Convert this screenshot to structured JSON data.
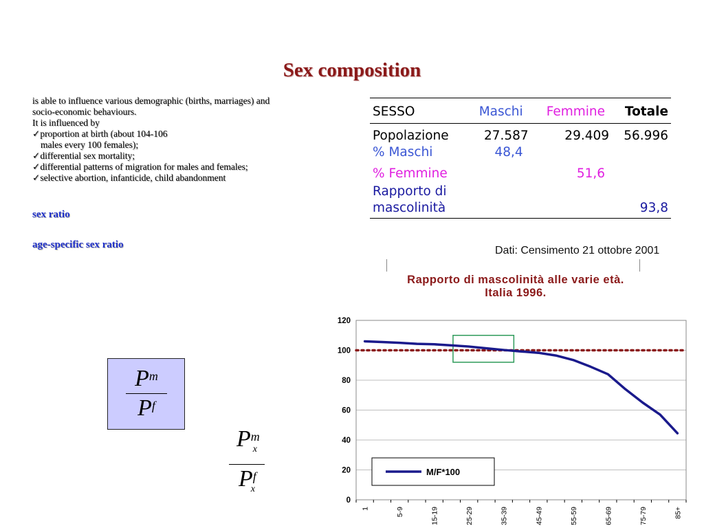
{
  "slide": {
    "title": "Sex composition",
    "intro_line1": "is able to influence various demographic (births, marriages) and",
    "intro_line2": "socio-economic behaviours.",
    "intro_line3": "It is influenced by",
    "bullets": [
      "proportion at birth (about 104-106",
      "males every 100 females);",
      "differential sex mortality;",
      "differential patterns of migration for males and females;",
      "selective abortion, infanticide, child abandonment"
    ],
    "check_mark": "✓",
    "link_sex_ratio": "sex ratio",
    "link_age_specific": "age-specific sex ratio"
  },
  "formulas": {
    "simple": {
      "num": "P",
      "num_sup": "m",
      "den": "P",
      "den_sup": "f"
    },
    "age_specific": {
      "num": "P",
      "num_sup": "m",
      "num_sub": "x",
      "den": "P",
      "den_sup": "f",
      "den_sub": "x"
    },
    "box_color": "#ccccff"
  },
  "census_table": {
    "headers": [
      "SESSO",
      "Maschi",
      "Femmine",
      "Totale"
    ],
    "rows": [
      {
        "label": "Popolazione",
        "maschi": "27.587",
        "femmine": "29.409",
        "totale": "56.996"
      },
      {
        "label": "% Maschi",
        "maschi": "48,4",
        "femmine": "",
        "totale": ""
      },
      {
        "label": "% Femmine",
        "maschi": "",
        "femmine": "51,6",
        "totale": ""
      },
      {
        "label": "Rapporto di",
        "maschi": "",
        "femmine": "",
        "totale": ""
      },
      {
        "label": "mascolinità",
        "maschi": "",
        "femmine": "",
        "totale": "93,8"
      }
    ],
    "source": "Dati: Censimento 21 ottobre 2001"
  },
  "colors": {
    "title": "#8B1A1A",
    "link": "#2233cc",
    "maschi": "#3a56d4",
    "femmine": "#e020e0",
    "rapporto": "#1a1aa0",
    "series_line": "#1a1a8c",
    "reference_line": "#8B1A1A",
    "highlight_box": "#2e9b5a"
  },
  "chart_data": {
    "type": "line",
    "title_line1": "Rapporto di mascolinità alle varie età.",
    "title_line2": "Italia 1996.",
    "xlabel": "",
    "ylabel": "",
    "x": [
      "1",
      "",
      "5-9",
      "",
      "15-19",
      "",
      "25-29",
      "",
      "35-39",
      "",
      "45-49",
      "",
      "55-59",
      "",
      "65-69",
      "",
      "75-79",
      "",
      "85+"
    ],
    "series": [
      {
        "name": "M/F*100",
        "values": [
          106,
          105.5,
          105,
          104.3,
          104,
          103.3,
          102.5,
          101.3,
          100.2,
          99.2,
          98.3,
          96.5,
          93.5,
          89,
          84,
          74,
          65,
          57,
          44.5
        ]
      }
    ],
    "reference_line": 100,
    "ylim": [
      0,
      120
    ],
    "yticks": [
      0,
      20,
      40,
      60,
      80,
      100,
      120
    ],
    "grid": true,
    "legend": "bottom-left",
    "highlight_range": {
      "x_from": "25-29",
      "x_to": "35-39",
      "y_from": 92,
      "y_to": 110
    }
  }
}
